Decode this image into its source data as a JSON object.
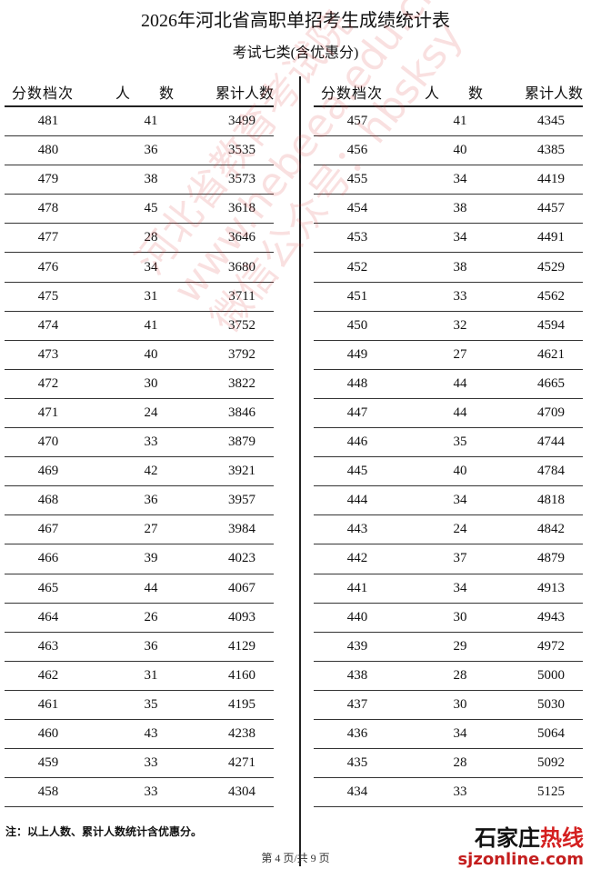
{
  "title": "2026年河北省高职单招考生成绩统计表",
  "subtitle": "考试七类(含优惠分)",
  "headers": [
    "分数档次",
    "人 数",
    "累计人数"
  ],
  "left_rows": [
    [
      "481",
      "41",
      "3499"
    ],
    [
      "480",
      "36",
      "3535"
    ],
    [
      "479",
      "38",
      "3573"
    ],
    [
      "478",
      "45",
      "3618"
    ],
    [
      "477",
      "28",
      "3646"
    ],
    [
      "476",
      "34",
      "3680"
    ],
    [
      "475",
      "31",
      "3711"
    ],
    [
      "474",
      "41",
      "3752"
    ],
    [
      "473",
      "40",
      "3792"
    ],
    [
      "472",
      "30",
      "3822"
    ],
    [
      "471",
      "24",
      "3846"
    ],
    [
      "470",
      "33",
      "3879"
    ],
    [
      "469",
      "42",
      "3921"
    ],
    [
      "468",
      "36",
      "3957"
    ],
    [
      "467",
      "27",
      "3984"
    ],
    [
      "466",
      "39",
      "4023"
    ],
    [
      "465",
      "44",
      "4067"
    ],
    [
      "464",
      "26",
      "4093"
    ],
    [
      "463",
      "36",
      "4129"
    ],
    [
      "462",
      "31",
      "4160"
    ],
    [
      "461",
      "35",
      "4195"
    ],
    [
      "460",
      "43",
      "4238"
    ],
    [
      "459",
      "33",
      "4271"
    ],
    [
      "458",
      "33",
      "4304"
    ]
  ],
  "right_rows": [
    [
      "457",
      "41",
      "4345"
    ],
    [
      "456",
      "40",
      "4385"
    ],
    [
      "455",
      "34",
      "4419"
    ],
    [
      "454",
      "38",
      "4457"
    ],
    [
      "453",
      "34",
      "4491"
    ],
    [
      "452",
      "38",
      "4529"
    ],
    [
      "451",
      "33",
      "4562"
    ],
    [
      "450",
      "32",
      "4594"
    ],
    [
      "449",
      "27",
      "4621"
    ],
    [
      "448",
      "44",
      "4665"
    ],
    [
      "447",
      "44",
      "4709"
    ],
    [
      "446",
      "35",
      "4744"
    ],
    [
      "445",
      "40",
      "4784"
    ],
    [
      "444",
      "34",
      "4818"
    ],
    [
      "443",
      "24",
      "4842"
    ],
    [
      "442",
      "37",
      "4879"
    ],
    [
      "441",
      "34",
      "4913"
    ],
    [
      "440",
      "30",
      "4943"
    ],
    [
      "439",
      "29",
      "4972"
    ],
    [
      "438",
      "28",
      "5000"
    ],
    [
      "437",
      "30",
      "5030"
    ],
    [
      "436",
      "34",
      "5064"
    ],
    [
      "435",
      "28",
      "5092"
    ],
    [
      "434",
      "33",
      "5125"
    ]
  ],
  "note": "注：以上人数、累计人数统计含优惠分。",
  "pager": "第 4 页/共 9 页",
  "watermark": [
    "河北省教育考试院",
    "www.hebeea.edu.cn",
    "微信公众号：hbsksy"
  ],
  "logo": {
    "name_black": "石家庄",
    "name_red": "热线",
    "url": "sjzonline.com"
  }
}
